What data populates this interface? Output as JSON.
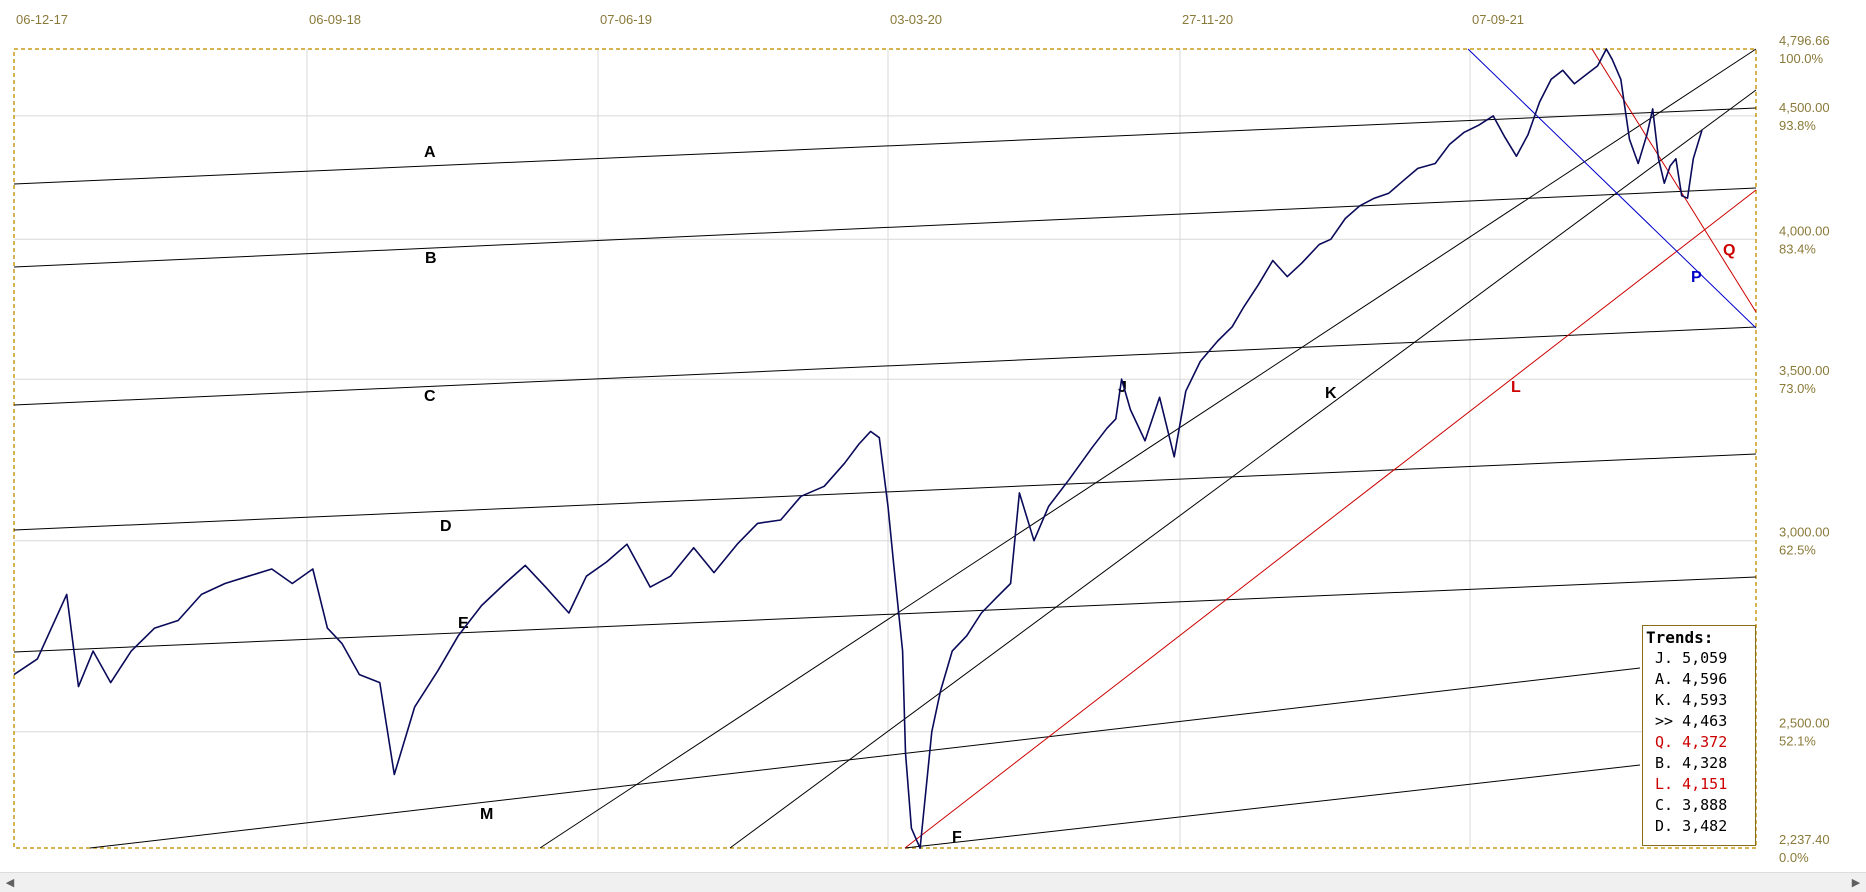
{
  "chart_data": {
    "type": "line",
    "title": "",
    "x_ticks": [
      "06-12-17",
      "06-09-18",
      "07-06-19",
      "03-03-20",
      "27-11-20",
      "07-09-21"
    ],
    "y_ticks": [
      {
        "value": 4796.66,
        "label": "4,796.66",
        "pct": "100.0%"
      },
      {
        "value": 4500,
        "label": "4,500.00",
        "pct": "93.8%"
      },
      {
        "value": 4000,
        "label": "4,000.00",
        "pct": "83.4%"
      },
      {
        "value": 3500,
        "label": "3,500.00",
        "pct": "73.0%"
      },
      {
        "value": 3000,
        "label": "3,000.00",
        "pct": "62.5%"
      },
      {
        "value": 2500,
        "label": "2,500.00",
        "pct": "52.1%"
      },
      {
        "value": 2237.4,
        "label": "2,237.40",
        "pct": "0.0%"
      }
    ],
    "ylim": [
      2237.4,
      4796.66
    ],
    "scale": "log",
    "grid": true,
    "series": [
      {
        "color": "#0a0a5a",
        "x_tick_pos": [
          0,
          1,
          2,
          3,
          4,
          5
        ],
        "points": [
          [
            0.0,
            2640
          ],
          [
            0.08,
            2680
          ],
          [
            0.18,
            2850
          ],
          [
            0.22,
            2610
          ],
          [
            0.27,
            2700
          ],
          [
            0.33,
            2620
          ],
          [
            0.4,
            2700
          ],
          [
            0.48,
            2760
          ],
          [
            0.56,
            2780
          ],
          [
            0.64,
            2850
          ],
          [
            0.72,
            2880
          ],
          [
            0.8,
            2900
          ],
          [
            0.88,
            2920
          ],
          [
            0.95,
            2880
          ],
          [
            1.02,
            2920
          ],
          [
            1.07,
            2760
          ],
          [
            1.12,
            2720
          ],
          [
            1.18,
            2640
          ],
          [
            1.25,
            2620
          ],
          [
            1.3,
            2400
          ],
          [
            1.37,
            2560
          ],
          [
            1.45,
            2650
          ],
          [
            1.52,
            2740
          ],
          [
            1.6,
            2820
          ],
          [
            1.68,
            2880
          ],
          [
            1.75,
            2930
          ],
          [
            1.82,
            2870
          ],
          [
            1.9,
            2800
          ],
          [
            1.96,
            2900
          ],
          [
            2.03,
            2940
          ],
          [
            2.1,
            2990
          ],
          [
            2.18,
            2870
          ],
          [
            2.25,
            2900
          ],
          [
            2.33,
            2980
          ],
          [
            2.4,
            2910
          ],
          [
            2.48,
            2990
          ],
          [
            2.55,
            3050
          ],
          [
            2.63,
            3060
          ],
          [
            2.7,
            3130
          ],
          [
            2.78,
            3160
          ],
          [
            2.85,
            3230
          ],
          [
            2.9,
            3290
          ],
          [
            2.94,
            3330
          ],
          [
            2.97,
            3310
          ],
          [
            3.0,
            3100
          ],
          [
            3.02,
            2930
          ],
          [
            3.05,
            2700
          ],
          [
            3.06,
            2450
          ],
          [
            3.08,
            2280
          ],
          [
            3.11,
            2237
          ],
          [
            3.15,
            2500
          ],
          [
            3.18,
            2600
          ],
          [
            3.22,
            2700
          ],
          [
            3.27,
            2740
          ],
          [
            3.32,
            2800
          ],
          [
            3.37,
            2840
          ],
          [
            3.42,
            2880
          ],
          [
            3.45,
            3140
          ],
          [
            3.5,
            3000
          ],
          [
            3.55,
            3100
          ],
          [
            3.62,
            3180
          ],
          [
            3.7,
            3280
          ],
          [
            3.75,
            3340
          ],
          [
            3.78,
            3370
          ],
          [
            3.8,
            3500
          ],
          [
            3.83,
            3400
          ],
          [
            3.88,
            3300
          ],
          [
            3.93,
            3440
          ],
          [
            3.98,
            3250
          ],
          [
            4.02,
            3460
          ],
          [
            4.07,
            3560
          ],
          [
            4.13,
            3630
          ],
          [
            4.18,
            3680
          ],
          [
            4.22,
            3750
          ],
          [
            4.27,
            3830
          ],
          [
            4.32,
            3920
          ],
          [
            4.37,
            3860
          ],
          [
            4.42,
            3910
          ],
          [
            4.48,
            3980
          ],
          [
            4.52,
            4000
          ],
          [
            4.57,
            4080
          ],
          [
            4.62,
            4130
          ],
          [
            4.67,
            4160
          ],
          [
            4.72,
            4180
          ],
          [
            4.77,
            4230
          ],
          [
            4.82,
            4280
          ],
          [
            4.88,
            4300
          ],
          [
            4.93,
            4380
          ],
          [
            4.98,
            4430
          ],
          [
            5.03,
            4460
          ],
          [
            5.08,
            4500
          ],
          [
            5.12,
            4410
          ],
          [
            5.16,
            4330
          ],
          [
            5.2,
            4420
          ],
          [
            5.24,
            4560
          ],
          [
            5.28,
            4660
          ],
          [
            5.32,
            4700
          ],
          [
            5.36,
            4640
          ],
          [
            5.4,
            4680
          ],
          [
            5.44,
            4720
          ],
          [
            5.47,
            4796.66
          ],
          [
            5.49,
            4750
          ],
          [
            5.52,
            4660
          ],
          [
            5.55,
            4400
          ],
          [
            5.58,
            4300
          ],
          [
            5.61,
            4420
          ],
          [
            5.63,
            4530
          ],
          [
            5.65,
            4320
          ],
          [
            5.67,
            4220
          ],
          [
            5.69,
            4290
          ],
          [
            5.71,
            4320
          ],
          [
            5.73,
            4170
          ],
          [
            5.75,
            4160
          ],
          [
            5.77,
            4320
          ],
          [
            5.8,
            4440
          ]
        ]
      }
    ],
    "trendlines": [
      {
        "label": "A",
        "color": "#000000"
      },
      {
        "label": "B",
        "color": "#000000"
      },
      {
        "label": "C",
        "color": "#000000"
      },
      {
        "label": "D",
        "color": "#000000"
      },
      {
        "label": "E",
        "color": "#000000"
      },
      {
        "label": "F",
        "color": "#000000"
      },
      {
        "label": "M",
        "color": "#000000"
      },
      {
        "label": "J",
        "color": "#000000"
      },
      {
        "label": "K",
        "color": "#000000"
      },
      {
        "label": "L",
        "color": "#cc0000"
      },
      {
        "label": "P",
        "color": "#0000cc"
      },
      {
        "label": "Q",
        "color": "#cc0000"
      }
    ]
  },
  "trends_panel": {
    "title": "Trends:",
    "rows": [
      {
        "key": "J.",
        "value": "5,059",
        "color": "#000000"
      },
      {
        "key": "A.",
        "value": "4,596",
        "color": "#000000"
      },
      {
        "key": "K.",
        "value": "4,593",
        "color": "#000000"
      },
      {
        "key": ">>",
        "value": "4,463",
        "color": "#000000"
      },
      {
        "key": "Q.",
        "value": "4,372",
        "color": "#cc0000"
      },
      {
        "key": "B.",
        "value": "4,328",
        "color": "#000000"
      },
      {
        "key": "L.",
        "value": "4,151",
        "color": "#cc0000"
      },
      {
        "key": "C.",
        "value": "3,888",
        "color": "#000000"
      },
      {
        "key": "D.",
        "value": "3,482",
        "color": "#000000"
      }
    ]
  },
  "scrollbar": {
    "left_arrow": "◀",
    "right_arrow": "▶"
  }
}
